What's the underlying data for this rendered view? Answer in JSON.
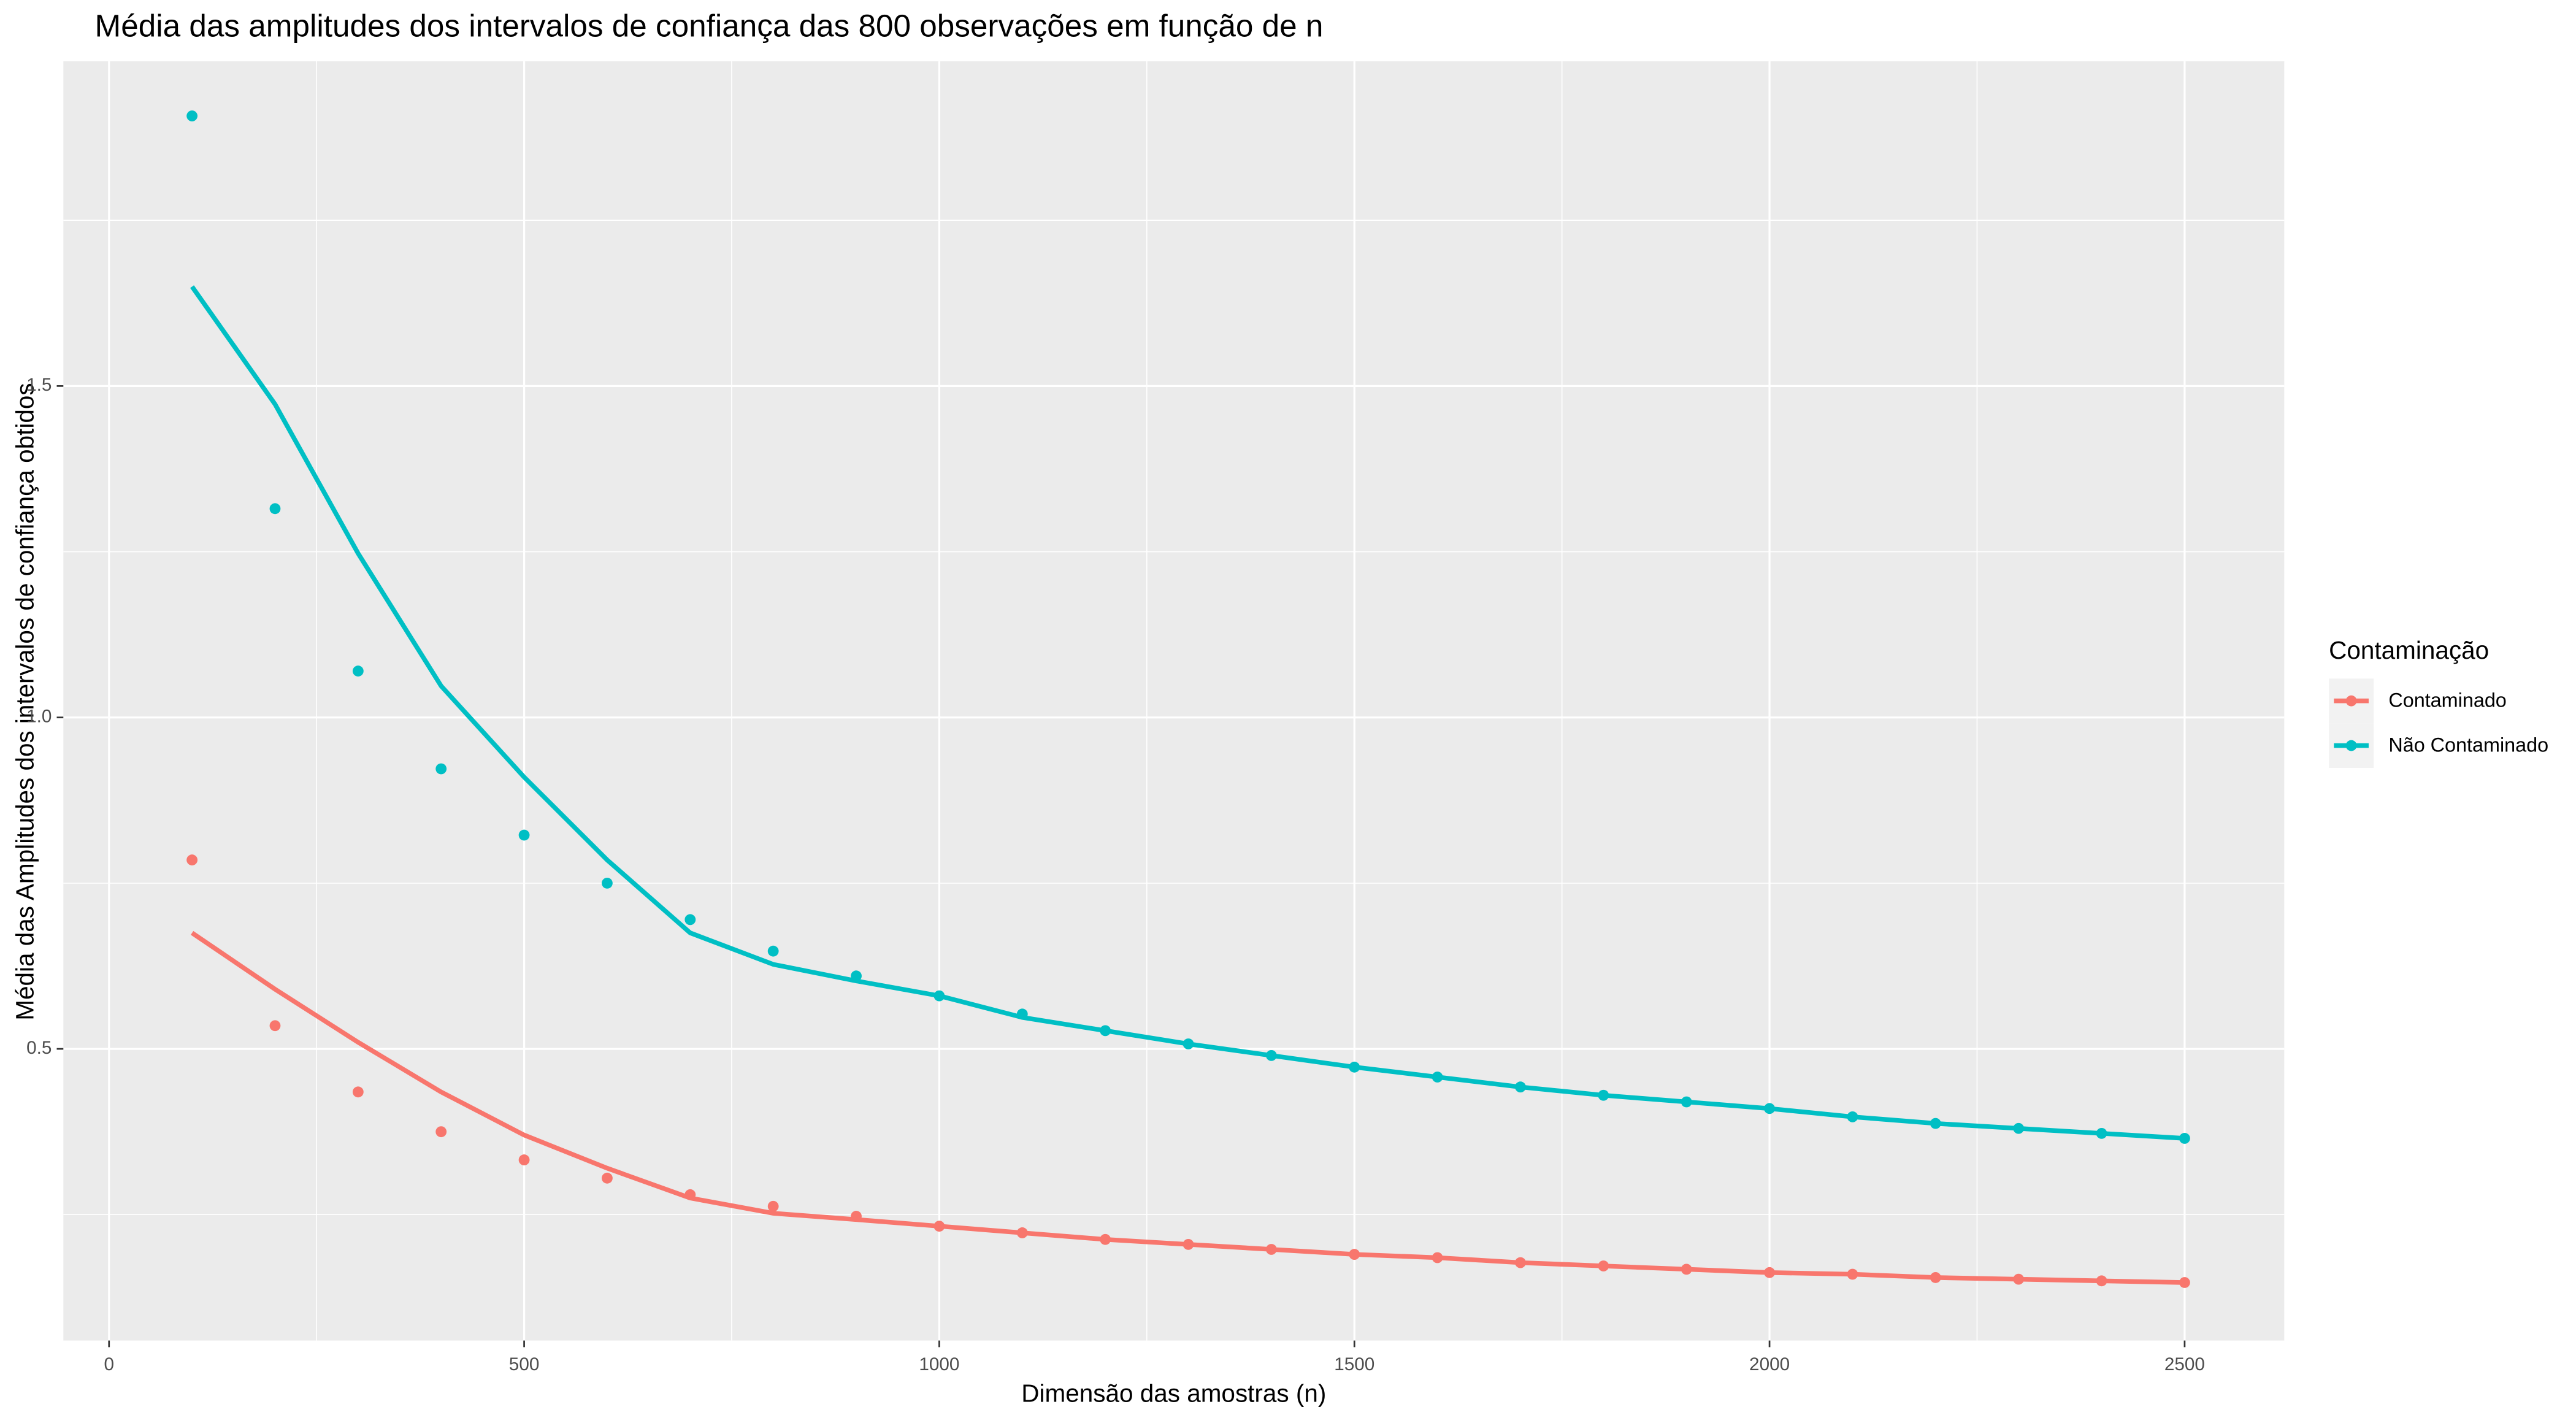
{
  "chart_data": {
    "type": "line",
    "title": "Média das amplitudes dos intervalos de confiança das 800 observações em função de n",
    "x_label": "Dimensão das amostras (n)",
    "y_label": "Média das Amplitudes dos intervalos de confiança obtidos",
    "legend_title": "Contaminação",
    "legend_position": "right",
    "grid": true,
    "x": [
      100,
      200,
      300,
      400,
      500,
      600,
      700,
      800,
      900,
      1000,
      1100,
      1200,
      1300,
      1400,
      1500,
      1600,
      1700,
      1800,
      1900,
      2000,
      2100,
      2200,
      2300,
      2400,
      2500
    ],
    "xlim": [
      -55,
      2620
    ],
    "xticks": [
      0,
      500,
      1000,
      1500,
      2000,
      2500
    ],
    "ylim": [
      0.06,
      1.99
    ],
    "yticks": [
      0.5,
      {
        "value": 1,
        "label": "1.0"
      },
      1.5
    ],
    "series": [
      {
        "name": "Contaminado",
        "color": "#F8766D",
        "values": [
          0.785,
          0.535,
          0.435,
          0.375,
          0.3325,
          0.305,
          0.28,
          0.2625,
          0.2475,
          0.2325,
          0.2225,
          0.2125,
          0.205,
          0.1975,
          0.19,
          0.185,
          0.1775,
          0.1725,
          0.1675,
          0.1625,
          0.16,
          0.155,
          0.1525,
          0.15,
          0.1475
        ],
        "smooth": [
          0.675,
          0.59,
          0.51,
          0.435,
          0.37,
          0.32,
          0.275,
          0.252,
          0.2425,
          0.2325,
          0.2225,
          0.2125,
          0.205,
          0.1975,
          0.19,
          0.185,
          0.1775,
          0.1725,
          0.1675,
          0.1625,
          0.16,
          0.155,
          0.1525,
          0.15,
          0.1475
        ]
      },
      {
        "name": "Não Contaminado",
        "color": "#00BFC4",
        "values": [
          1.9075,
          1.315,
          1.07,
          0.9225,
          0.8225,
          0.75,
          0.695,
          0.6475,
          0.61,
          0.58,
          0.5525,
          0.5275,
          0.5075,
          0.49,
          0.4725,
          0.4575,
          0.4425,
          0.43,
          0.42,
          0.41,
          0.3975,
          0.3875,
          0.38,
          0.3725,
          0.365
        ],
        "smooth": [
          1.65,
          1.4725,
          1.2475,
          1.0475,
          0.91,
          0.785,
          0.675,
          0.6275,
          0.6025,
          0.58,
          0.5475,
          0.5275,
          0.5075,
          0.49,
          0.4725,
          0.4575,
          0.4425,
          0.43,
          0.42,
          0.41,
          0.3975,
          0.3875,
          0.38,
          0.3725,
          0.365
        ]
      }
    ]
  }
}
